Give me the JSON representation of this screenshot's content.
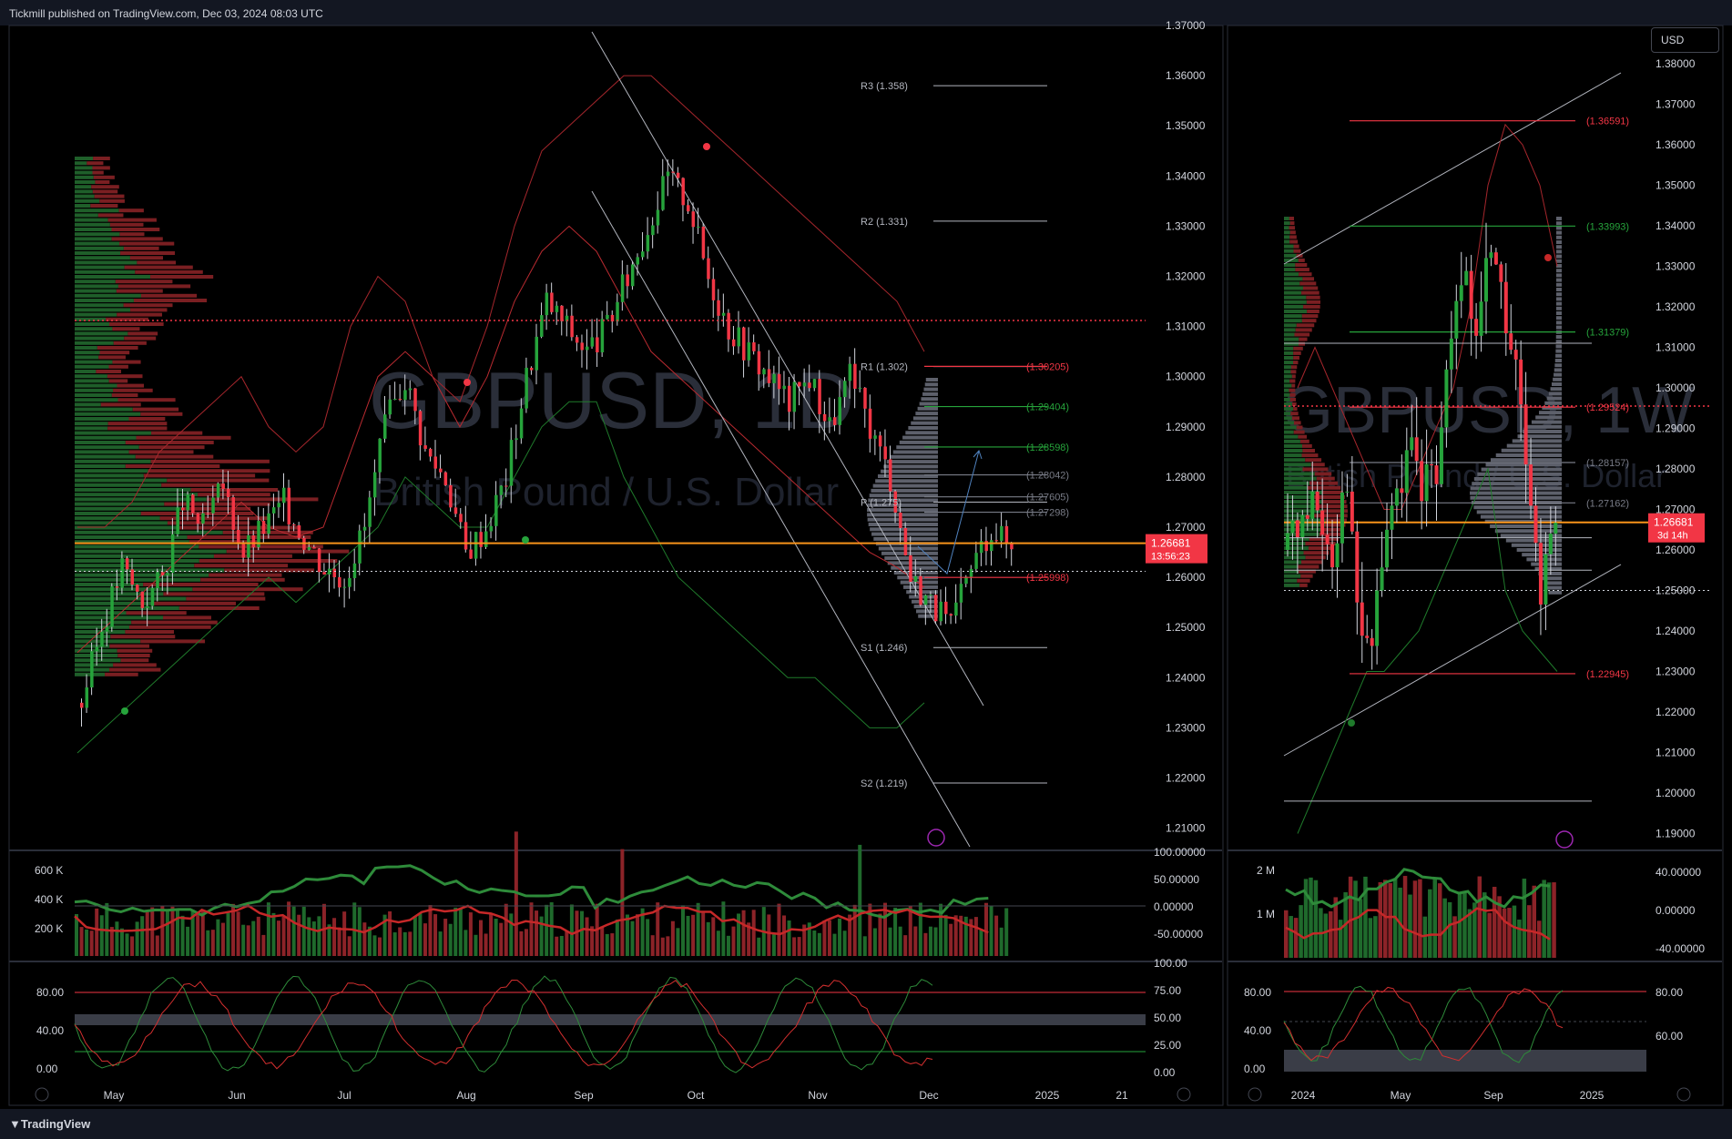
{
  "header": {
    "publish_text": "Tickmill published on TradingView.com, Dec 03, 2024 08:03 UTC"
  },
  "footer": {
    "brand": "TradingView"
  },
  "currency_button": "USD",
  "colors": {
    "up": "#26a33b",
    "down": "#f23645",
    "background": "#000000",
    "orange": "#f7931a"
  },
  "chart_data": [
    {
      "type": "candlestick",
      "panel": "left",
      "watermark_symbol": "GBPUSD, 1D",
      "watermark_name": "British Pound / U.S. Dollar",
      "y_ticks": [
        "1.37000",
        "1.36000",
        "1.35000",
        "1.34000",
        "1.33000",
        "1.32000",
        "1.31000",
        "1.30000",
        "1.29000",
        "1.28000",
        "1.27000",
        "1.26000",
        "1.25000",
        "1.24000",
        "1.23000",
        "1.22000",
        "1.21000"
      ],
      "x_ticks": [
        "May",
        "Jun",
        "Jul",
        "Aug",
        "Sep",
        "Oct",
        "Nov",
        "Dec",
        "2025",
        "21"
      ],
      "last_price": "1.26681",
      "countdown": "13:56:23",
      "pivots": [
        {
          "label": "R3 (1.358)",
          "value": 1.358
        },
        {
          "label": "R2 (1.331)",
          "value": 1.331
        },
        {
          "label": "R1 (1.302)",
          "value": 1.302
        },
        {
          "label": "P (1.275)",
          "value": 1.275
        },
        {
          "label": "S1 (1.246)",
          "value": 1.246
        },
        {
          "label": "S2 (1.219)",
          "value": 1.219
        }
      ],
      "levels": [
        {
          "label": "(1.30205)",
          "value": 1.30205,
          "color": "#f23645"
        },
        {
          "label": "(1.29404)",
          "value": 1.29404,
          "color": "#26a33b"
        },
        {
          "label": "(1.28598)",
          "value": 1.28598,
          "color": "#26a33b"
        },
        {
          "label": "(1.28042)",
          "value": 1.28042,
          "color": "#787b86"
        },
        {
          "label": "(1.27605)",
          "value": 1.27605,
          "color": "#787b86"
        },
        {
          "label": "(1.27298)",
          "value": 1.27298,
          "color": "#787b86"
        },
        {
          "label": "(1.25998)",
          "value": 1.25998,
          "color": "#f23645"
        }
      ],
      "close_path": [
        1.235,
        1.25,
        1.262,
        1.255,
        1.26,
        1.275,
        1.27,
        1.278,
        1.265,
        1.27,
        1.275,
        1.268,
        1.262,
        1.26,
        1.27,
        1.29,
        1.3,
        1.285,
        1.28,
        1.265,
        1.27,
        1.28,
        1.3,
        1.315,
        1.31,
        1.305,
        1.31,
        1.32,
        1.33,
        1.34,
        1.335,
        1.32,
        1.31,
        1.305,
        1.3,
        1.295,
        1.3,
        1.29,
        1.3,
        1.29,
        1.28,
        1.26,
        1.255,
        1.25,
        1.262,
        1.27,
        1.266
      ],
      "volume_ticks": [
        "600 K",
        "400 K",
        "200 K"
      ],
      "oscillator_ticks": [
        "100.00000",
        "50.00000",
        "0.00000",
        "-50.00000"
      ],
      "stoch_ticks_left": [
        "80.00",
        "40.00",
        "0.00"
      ],
      "stoch_ticks_right": [
        "100.00",
        "75.00",
        "50.00",
        "25.00",
        "0.00"
      ]
    },
    {
      "type": "candlestick",
      "panel": "right",
      "watermark_symbol": "GBPUSD, 1W",
      "watermark_name": "British Pound / U.S. Dollar",
      "y_ticks": [
        "1.38000",
        "1.37000",
        "1.36000",
        "1.35000",
        "1.34000",
        "1.33000",
        "1.32000",
        "1.31000",
        "1.30000",
        "1.29000",
        "1.28000",
        "1.27000",
        "1.26000",
        "1.25000",
        "1.24000",
        "1.23000",
        "1.22000",
        "1.21000",
        "1.20000",
        "1.19000"
      ],
      "x_ticks": [
        "2024",
        "May",
        "Sep",
        "2025"
      ],
      "last_price": "1.26681",
      "countdown": "3d 14h",
      "levels": [
        {
          "label": "(1.36591)",
          "value": 1.36591,
          "color": "#f23645"
        },
        {
          "label": "(1.33993)",
          "value": 1.33993,
          "color": "#26a33b"
        },
        {
          "label": "(1.31379)",
          "value": 1.31379,
          "color": "#26a33b"
        },
        {
          "label": "(1.29524)",
          "value": 1.29524,
          "color": "#f23645"
        },
        {
          "label": "(1.28157)",
          "value": 1.28157,
          "color": "#787b86"
        },
        {
          "label": "(1.27162)",
          "value": 1.27162,
          "color": "#787b86"
        },
        {
          "label": "(1.22945)",
          "value": 1.22945,
          "color": "#f23645"
        }
      ],
      "close_path": [
        1.26,
        1.27,
        1.265,
        1.275,
        1.27,
        1.265,
        1.26,
        1.27,
        1.28,
        1.25,
        1.24,
        1.23,
        1.25,
        1.26,
        1.27,
        1.275,
        1.28,
        1.285,
        1.27,
        1.29,
        1.28,
        1.3,
        1.31,
        1.32,
        1.33,
        1.31,
        1.32,
        1.34,
        1.33,
        1.32,
        1.31,
        1.3,
        1.28,
        1.26,
        1.25,
        1.27,
        1.266
      ],
      "volume_ticks": [
        "2 M",
        "1 M"
      ],
      "oscillator_ticks": [
        "40.00000",
        "0.00000",
        "-40.00000"
      ],
      "stoch_ticks_left": [
        "80.00",
        "40.00",
        "0.00"
      ],
      "stoch_ticks_right": [
        "80.00",
        "60.00"
      ]
    }
  ]
}
